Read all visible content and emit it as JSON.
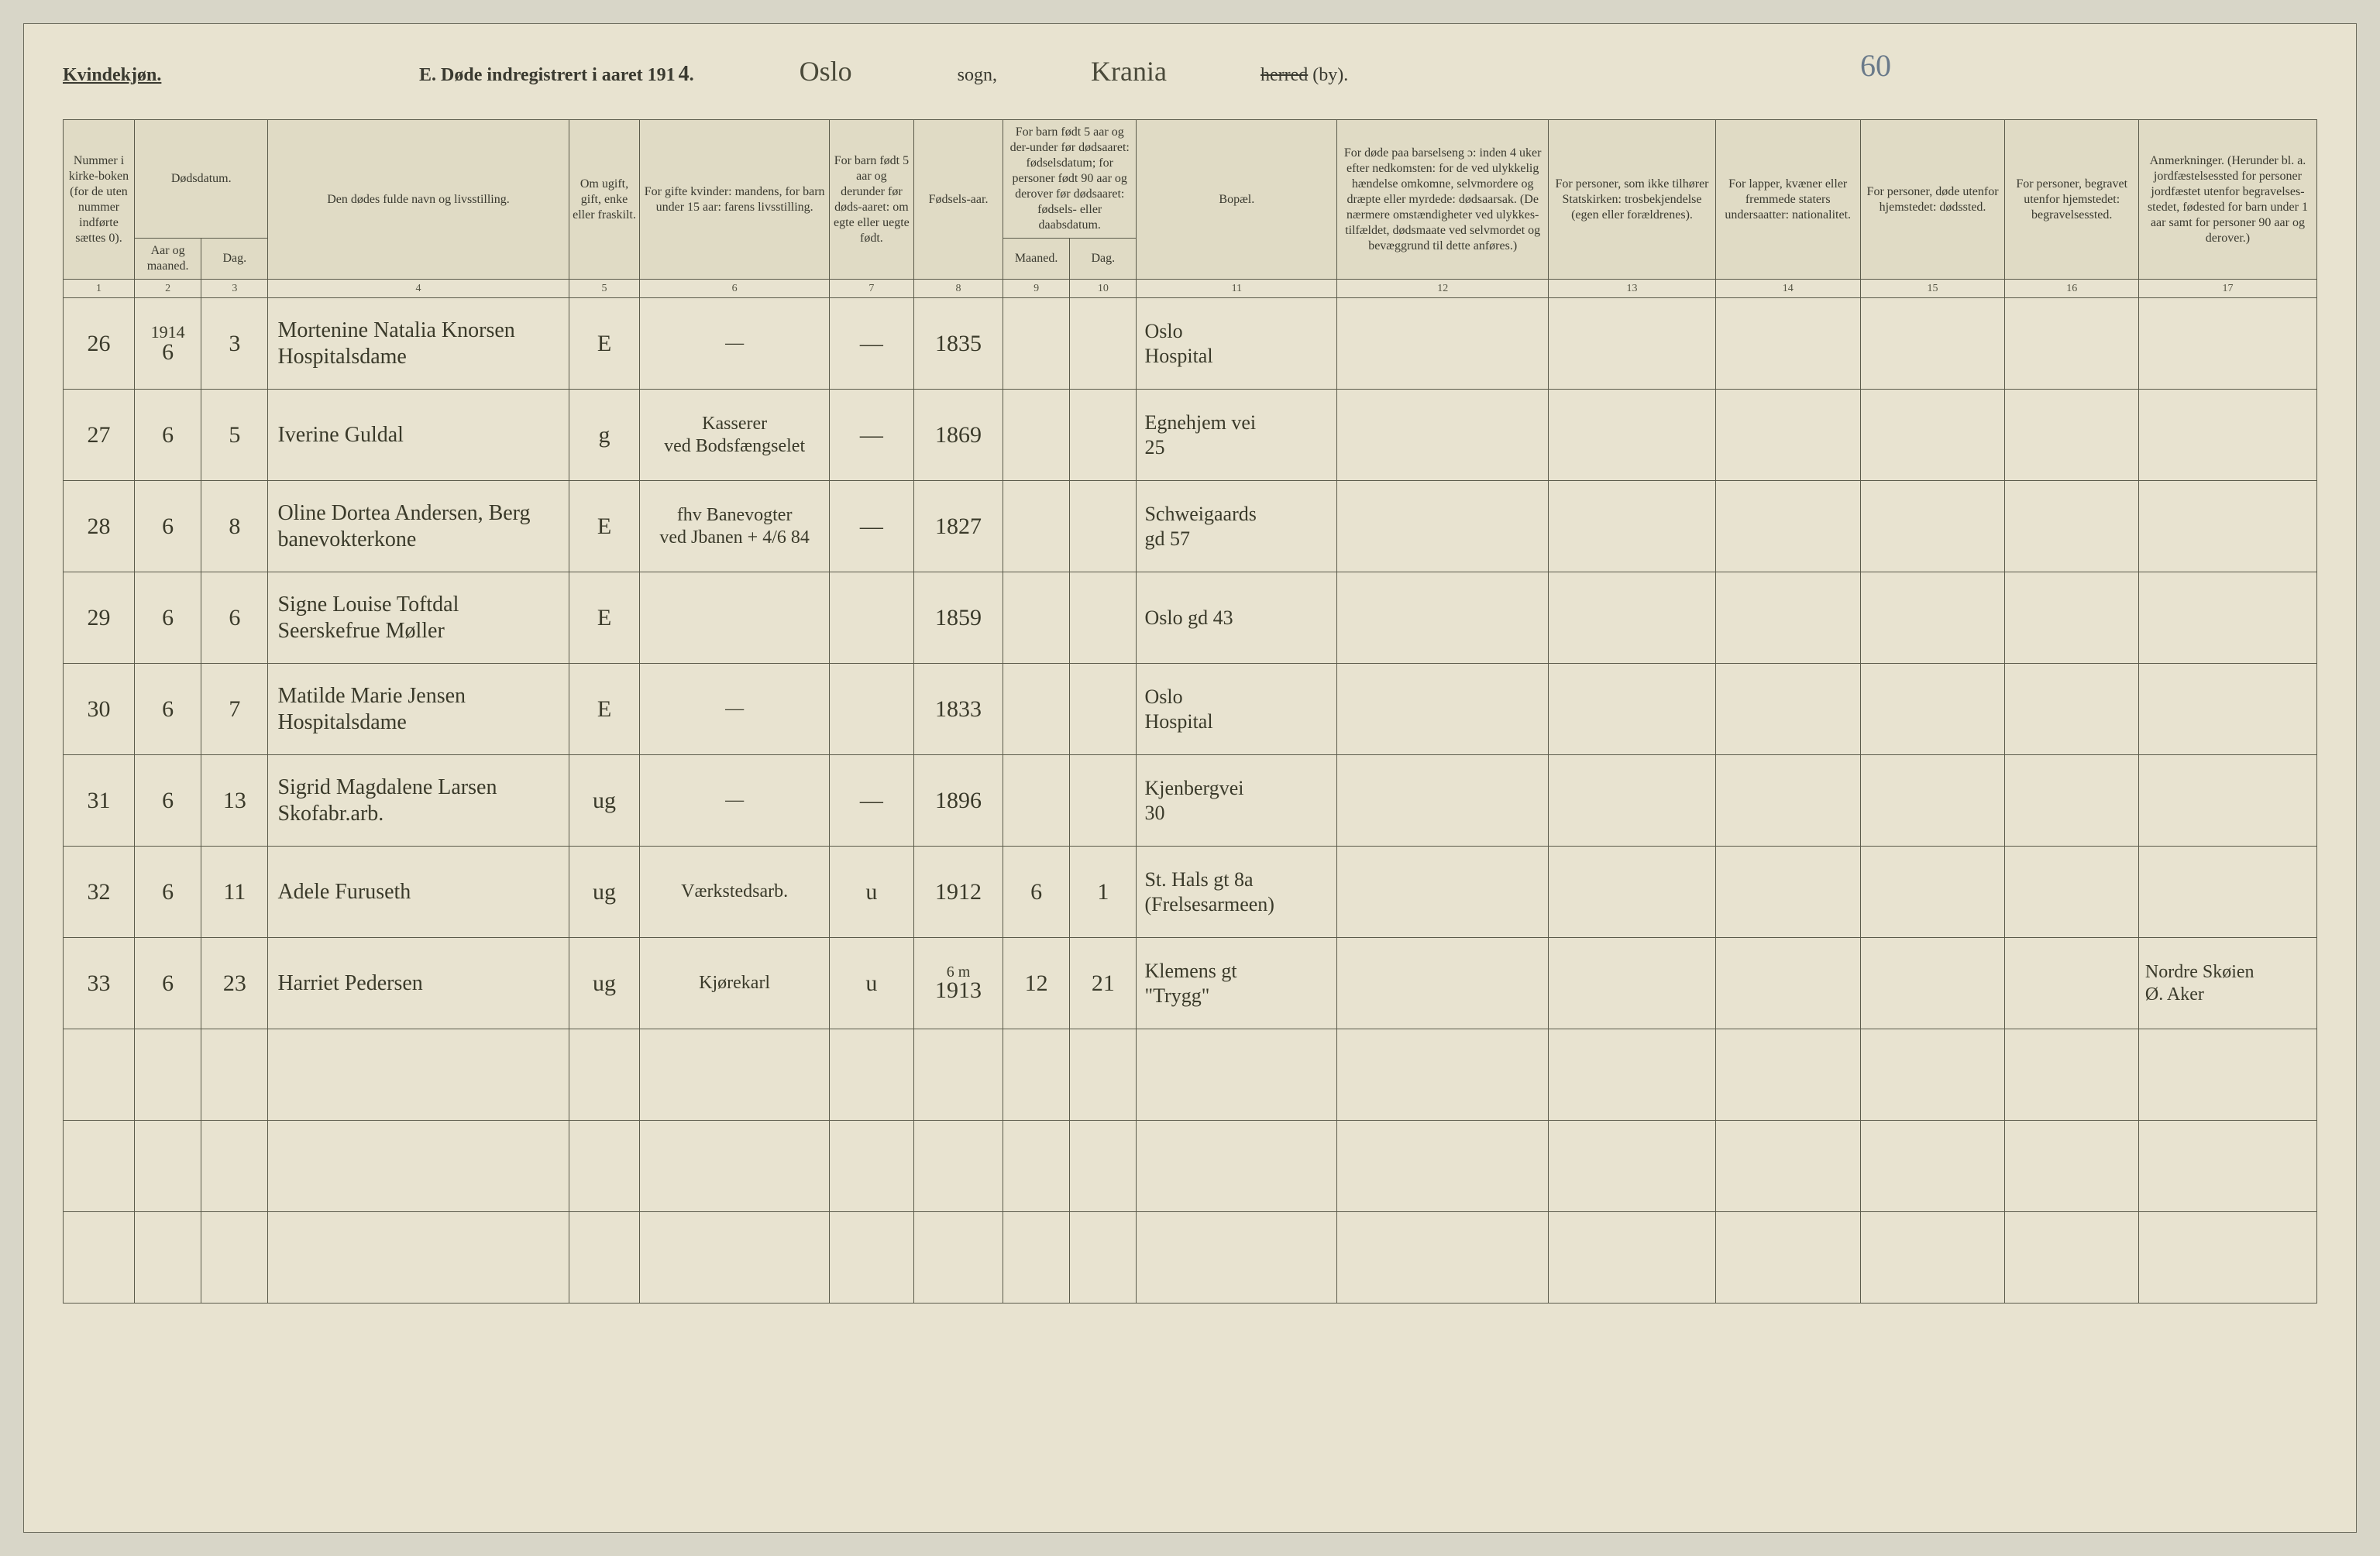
{
  "colors": {
    "page_bg": "#e8e3d0",
    "outer_bg": "#d8d6c8",
    "rule": "#5a5a4a",
    "print_text": "#3a3a30",
    "ink_hand": "#3a3a2a",
    "pencil": "#6a7a8a"
  },
  "fonts": {
    "print_family": "Georgia, 'Times New Roman', serif",
    "hand_family": "'Brush Script MT', cursive",
    "header_size_pt": 18,
    "colhead_size_pt": 12,
    "hand_size_pt": 22
  },
  "header": {
    "gender": "Kvindekjøn.",
    "title_prefix": "E.  Døde indregistrert i aaret 191",
    "year_suffix": "4.",
    "year_handwritten": "4",
    "parish_hand": "Oslo",
    "sogn_label": "sogn,",
    "district_hand": "Krania",
    "herred_struck": "herred",
    "by_label": "(by).",
    "page_number_hand": "60"
  },
  "column_widths_pct": [
    3.2,
    3.0,
    3.0,
    13.5,
    3.2,
    8.5,
    3.8,
    4.0,
    3.0,
    3.0,
    9.0,
    9.5,
    7.5,
    6.5,
    6.5,
    6.0,
    8.0
  ],
  "colgroups": {
    "dodsdatum": "Dødsdatum.",
    "under5": "For barn født 5 aar og der-under før dødsaaret: fødselsdatum; for personer født 90 aar og derover før dødsaaret: fødsels- eller daabsdatum."
  },
  "columns": [
    {
      "n": "1",
      "label": "Nummer i kirke-boken (for de uten nummer indførte sættes 0)."
    },
    {
      "n": "2",
      "label": "Aar og maaned."
    },
    {
      "n": "3",
      "label": "Dag."
    },
    {
      "n": "4",
      "label": "Den dødes fulde navn og livsstilling."
    },
    {
      "n": "5",
      "label": "Om ugift, gift, enke eller fraskilt."
    },
    {
      "n": "6",
      "label": "For gifte kvinder: mandens, for barn under 15 aar: farens livsstilling."
    },
    {
      "n": "7",
      "label": "For barn født 5 aar og derunder før døds-aaret: om egte eller uegte født."
    },
    {
      "n": "8",
      "label": "Fødsels-aar."
    },
    {
      "n": "9",
      "label": "Maaned."
    },
    {
      "n": "10",
      "label": "Dag."
    },
    {
      "n": "11",
      "label": "Bopæl."
    },
    {
      "n": "12",
      "label": "For døde paa barselseng ɔ: inden 4 uker efter nedkomsten: for de ved ulykkelig hændelse omkomne, selvmordere og dræpte eller myrdede: dødsaarsak. (De nærmere omstændigheter ved ulykkes-tilfældet, dødsmaate ved selvmordet og bevæggrund til dette anføres.)"
    },
    {
      "n": "13",
      "label": "For personer, som ikke tilhører Statskirken: trosbekjendelse (egen eller forældrenes)."
    },
    {
      "n": "14",
      "label": "For lapper, kvæner eller fremmede staters undersaatter: nationalitet."
    },
    {
      "n": "15",
      "label": "For personer, døde utenfor hjemstedet: dødssted."
    },
    {
      "n": "16",
      "label": "For personer, begravet utenfor hjemstedet: begravelsessted."
    },
    {
      "n": "17",
      "label": "Anmerkninger. (Herunder bl. a. jordfæstelsessted for personer jordfæstet utenfor begravelses-stedet, fødested for barn under 1 aar samt for personer 90 aar og derover.)"
    }
  ],
  "rows": [
    {
      "tick": "×",
      "num": "26",
      "year_month_top": "1914",
      "year_month_bot": "6",
      "day": "3",
      "name": "Mortenine Natalia Knorsen\nHospitalsdame",
      "status": "E",
      "husband": "—",
      "legit": "—",
      "birth": "1835",
      "bm": "",
      "bd": "",
      "address": "Oslo\nHospital",
      "cause": "",
      "faith": "",
      "nat": "",
      "deathpl": "",
      "burial": "",
      "remarks": ""
    },
    {
      "tick": "×",
      "num": "27",
      "year_month_top": "",
      "year_month_bot": "6",
      "day": "5",
      "name": "Iverine Guldal",
      "status": "g",
      "husband": "Kasserer\nved Bodsfængselet",
      "legit": "—",
      "birth": "1869",
      "bm": "",
      "bd": "",
      "address": "Egnehjem vei\n25",
      "cause": "",
      "faith": "",
      "nat": "",
      "deathpl": "",
      "burial": "",
      "remarks": ""
    },
    {
      "tick": "×",
      "num": "28",
      "year_month_top": "",
      "year_month_bot": "6",
      "day": "8",
      "name": "Oline Dortea Andersen, Berg\nbanevokterkone",
      "status": "E",
      "husband": "fhv Banevogter\nved Jbanen + 4/6 84",
      "legit": "—",
      "birth": "1827",
      "bm": "",
      "bd": "",
      "address": "Schweigaards\ngd 57",
      "cause": "",
      "faith": "",
      "nat": "",
      "deathpl": "",
      "burial": "",
      "remarks": ""
    },
    {
      "tick": "×",
      "num": "29",
      "year_month_top": "",
      "year_month_bot": "6",
      "day": "6",
      "name": "Signe Louise Toftdal\nSeerskefrue Møller",
      "status": "E",
      "husband": "",
      "legit": "",
      "birth": "1859",
      "bm": "",
      "bd": "",
      "address": "Oslo gd 43",
      "cause": "",
      "faith": "",
      "nat": "",
      "deathpl": "",
      "burial": "",
      "remarks": ""
    },
    {
      "tick": "×",
      "num": "30",
      "year_month_top": "",
      "year_month_bot": "6",
      "day": "7",
      "name": "Matilde Marie Jensen\nHospitalsdame",
      "status": "E",
      "husband": "—",
      "legit": "",
      "birth": "1833",
      "bm": "",
      "bd": "",
      "address": "Oslo\nHospital",
      "cause": "",
      "faith": "",
      "nat": "",
      "deathpl": "",
      "burial": "",
      "remarks": ""
    },
    {
      "tick": "×",
      "num": "31",
      "year_month_top": "",
      "year_month_bot": "6",
      "day": "13",
      "name": "Sigrid Magdalene Larsen\nSkofabr.arb.",
      "status": "ug",
      "husband": "—",
      "legit": "—",
      "birth": "1896",
      "bm": "",
      "bd": "",
      "address": "Kjenbergvei\n30",
      "cause": "",
      "faith": "",
      "nat": "",
      "deathpl": "",
      "burial": "",
      "remarks": ""
    },
    {
      "tick": "×",
      "num": "32",
      "year_month_top": "",
      "year_month_bot": "6",
      "day": "11",
      "name": "Adele Furuseth",
      "status": "ug",
      "husband": "Værkstedsarb.",
      "legit": "u",
      "birth": "1912",
      "bm": "6",
      "bd": "1",
      "address": "St. Hals gt 8a\n(Frelsesarmeen)",
      "cause": "",
      "faith": "",
      "nat": "",
      "deathpl": "",
      "burial": "",
      "remarks": ""
    },
    {
      "tick": "×",
      "num": "33",
      "year_month_top": "",
      "year_month_bot": "6",
      "day": "23",
      "name": "Harriet Pedersen",
      "status": "ug",
      "husband": "Kjørekarl",
      "legit": "u",
      "birth": "1913",
      "bm": "12",
      "bd": "21",
      "address": "Klemens gt\n\"Trygg\"",
      "cause": "",
      "faith": "",
      "nat": "",
      "deathpl": "",
      "burial": "",
      "remarks": "Nordre Skøien\nØ. Aker"
    }
  ],
  "extra_note_over_row8_birth": "6 m",
  "blank_rows": 3
}
